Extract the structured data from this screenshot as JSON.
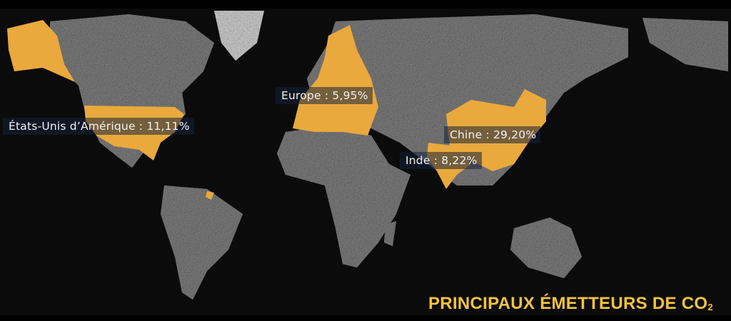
{
  "title": {
    "text": "PRINCIPAUX ÉMETTEURS DE CO",
    "subscript": "2"
  },
  "labels": [
    {
      "country": "États-Unis d’Amérique",
      "value": "11,11%",
      "text": "États-Unis d’Amérique : 11,11%"
    },
    {
      "country": "Europe",
      "value": "5,95%",
      "text": "Europe : 5,95%"
    },
    {
      "country": "Chine",
      "value": "29,20%",
      "text": "Chine : 29,20%"
    },
    {
      "country": "Inde",
      "value": "8,22%",
      "text": "Inde : 8,22%"
    }
  ],
  "colors": {
    "highlight": "#e9a93d",
    "land": "#8a8a8a",
    "ocean": "#0a0a0a",
    "title": "#f5c33b",
    "label_bg": "#14233c"
  }
}
